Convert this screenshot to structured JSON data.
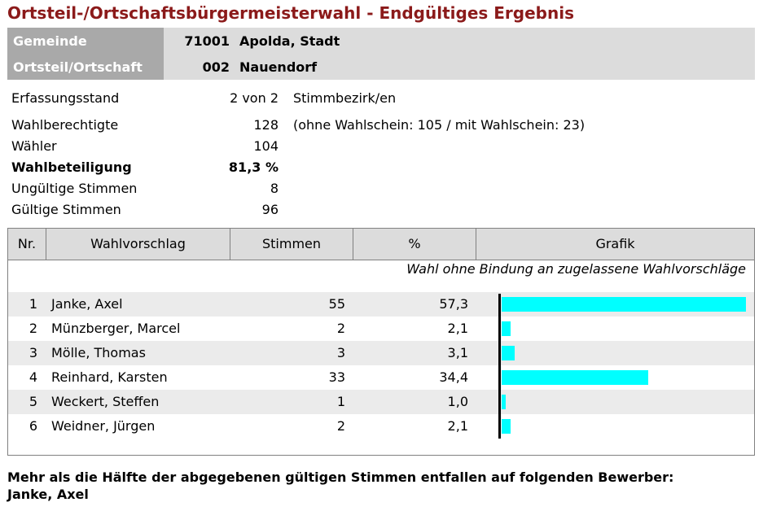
{
  "title": "Ortsteil-/Ortschaftsbürgermeisterwahl - Endgültiges Ergebnis",
  "header": {
    "gemeinde_label": "Gemeinde",
    "gemeinde_code": "71001",
    "gemeinde_name": "Apolda, Stadt",
    "ortsteil_label": "Ortsteil/Ortschaft",
    "ortsteil_code": "002",
    "ortsteil_name": "Nauendorf"
  },
  "stats": {
    "erfassung_label": "Erfassungsstand",
    "erfassung_value": "2 von 2",
    "erfassung_extra": "Stimmbezirk/en",
    "wahlberechtigte_label": "Wahlberechtigte",
    "wahlberechtigte_value": "128",
    "wahlberechtigte_extra": "(ohne Wahlschein: 105 / mit Wahlschein: 23)",
    "waehler_label": "Wähler",
    "waehler_value": "104",
    "beteiligung_label": "Wahlbeteiligung",
    "beteiligung_value": "81,3 %",
    "ungueltig_label": "Ungültige Stimmen",
    "ungueltig_value": "8",
    "gueltig_label": "Gültige Stimmen",
    "gueltig_value": "96"
  },
  "table": {
    "col_nr": "Nr.",
    "col_name": "Wahlvorschlag",
    "col_votes": "Stimmen",
    "col_pct": "%",
    "col_graph": "Grafik",
    "note": "Wahl ohne Bindung an zugelassene Wahlvorschläge",
    "rows": [
      {
        "nr": "1",
        "name": "Janke, Axel",
        "votes": "55",
        "pct": "57,3",
        "share": 57.3
      },
      {
        "nr": "2",
        "name": "Münzberger, Marcel",
        "votes": "2",
        "pct": "2,1",
        "share": 2.1
      },
      {
        "nr": "3",
        "name": "Mölle, Thomas",
        "votes": "3",
        "pct": "3,1",
        "share": 3.1
      },
      {
        "nr": "4",
        "name": "Reinhard, Karsten",
        "votes": "33",
        "pct": "34,4",
        "share": 34.4
      },
      {
        "nr": "5",
        "name": "Weckert, Steffen",
        "votes": "1",
        "pct": "1,0",
        "share": 1.0
      },
      {
        "nr": "6",
        "name": "Weidner, Jürgen",
        "votes": "2",
        "pct": "2,1",
        "share": 2.1
      }
    ],
    "bar_color": "#00ffff"
  },
  "footer": {
    "line1": "Mehr als die Hälfte der abgegebenen gültigen Stimmen entfallen auf folgenden Bewerber:",
    "line2": "Janke, Axel"
  }
}
